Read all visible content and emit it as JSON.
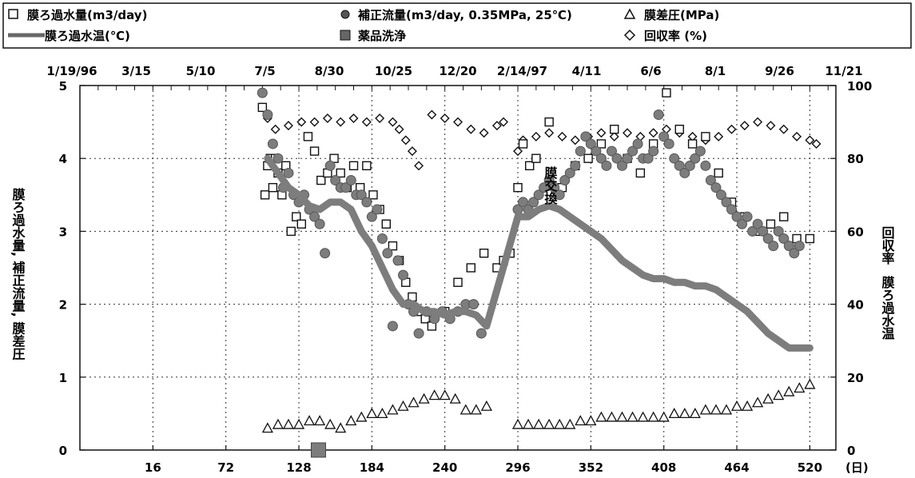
{
  "chart_data": {
    "type": "scatter",
    "title": "",
    "legend": {
      "placement": "top",
      "entries": [
        {
          "key": "permeate_flow",
          "label": "膜ろ過水量(m3/day)",
          "marker": "square"
        },
        {
          "key": "corrected_flow",
          "label": "補正流量(m3/day, 0.35MPa, 25℃)",
          "marker": "circle"
        },
        {
          "key": "tmp",
          "label": "膜差圧(MPa)",
          "marker": "triangle"
        },
        {
          "key": "water_temp",
          "label": "膜ろ過水温(℃)",
          "marker": "line"
        },
        {
          "key": "chem_clean",
          "label": "薬品洗浄",
          "marker": "filled-square"
        },
        {
          "key": "recovery",
          "label": "回収率 (%)",
          "marker": "diamond"
        }
      ]
    },
    "x_axis": {
      "label": "(日)",
      "range": [
        -40,
        540
      ],
      "ticks": [
        16,
        72,
        128,
        184,
        240,
        296,
        352,
        408,
        464,
        520
      ],
      "tick_labels": [
        "16",
        "72",
        "128",
        "184",
        "240",
        "296",
        "352",
        "408",
        "464",
        "520"
      ]
    },
    "x_axis_top": {
      "ticks": [
        -40,
        16,
        72,
        128,
        184,
        240,
        296,
        352,
        408,
        464,
        520
      ],
      "tick_labels": [
        "1/19/96",
        "3/15",
        "5/10",
        "7/5",
        "8/30",
        "10/25",
        "12/20",
        "2/14/97",
        "4/11",
        "6/6",
        "8/1",
        "9/26",
        "11/21"
      ],
      "tick_days": [
        -40,
        16,
        72,
        128,
        184,
        240,
        296,
        352,
        408,
        464,
        520,
        576,
        632
      ]
    },
    "y_left": {
      "label": "膜ろ過水量, 補正流量, 膜差圧",
      "range": [
        0,
        5
      ],
      "ticks": [
        0,
        1,
        2,
        3,
        4,
        5
      ],
      "tick_labels": [
        "0",
        "1",
        "2",
        "3",
        "4",
        "5"
      ]
    },
    "y_right": {
      "labels": [
        "回収率",
        "膜ろ過水温"
      ],
      "range": [
        0,
        100
      ],
      "ticks": [
        0,
        20,
        40,
        60,
        80,
        100
      ],
      "tick_labels": [
        "0",
        "20",
        "40",
        "60",
        "80",
        "100"
      ]
    },
    "grid": true,
    "annotation": "膜交換",
    "series": [
      {
        "name": "回収率 (%)",
        "axis": "right",
        "style": "diamond",
        "x": [
          100,
          104,
          110,
          120,
          130,
          140,
          150,
          160,
          170,
          180,
          190,
          200,
          205,
          210,
          215,
          220,
          230,
          240,
          250,
          260,
          270,
          280,
          285,
          296,
          300,
          310,
          320,
          330,
          340,
          350,
          360,
          370,
          380,
          390,
          400,
          410,
          420,
          430,
          440,
          450,
          460,
          470,
          480,
          490,
          500,
          510,
          520,
          525
        ],
        "y": [
          94,
          91,
          88,
          89,
          90,
          90,
          91,
          90,
          91,
          90,
          91,
          90,
          88,
          85,
          82,
          78,
          92,
          91,
          90,
          88,
          87,
          89,
          90,
          82,
          85,
          86,
          87,
          86,
          85,
          86,
          87,
          86,
          87,
          86,
          87,
          88,
          87,
          86,
          85,
          86,
          88,
          89,
          90,
          89,
          88,
          86,
          85,
          84
        ]
      },
      {
        "name": "膜ろ過水量(m3/day)",
        "axis": "left",
        "style": "square",
        "x": [
          100,
          102,
          104,
          106,
          108,
          110,
          112,
          115,
          118,
          122,
          126,
          130,
          135,
          140,
          145,
          150,
          155,
          160,
          165,
          170,
          175,
          180,
          185,
          190,
          195,
          200,
          205,
          210,
          215,
          220,
          225,
          230,
          240,
          250,
          260,
          270,
          280,
          285,
          290,
          296,
          300,
          305,
          310,
          320,
          330,
          340,
          350,
          360,
          370,
          380,
          390,
          400,
          410,
          420,
          430,
          440,
          450,
          460,
          470,
          480,
          490,
          500,
          510,
          520
        ],
        "y": [
          4.7,
          3.5,
          3.9,
          4.0,
          3.6,
          4.0,
          3.8,
          3.5,
          3.9,
          3.0,
          3.2,
          3.1,
          4.3,
          4.1,
          3.7,
          3.8,
          4.0,
          3.8,
          3.6,
          3.9,
          3.6,
          3.9,
          3.5,
          3.3,
          3.1,
          2.8,
          2.6,
          2.3,
          2.1,
          1.9,
          1.8,
          1.7,
          1.9,
          2.3,
          2.5,
          2.7,
          2.5,
          2.6,
          2.7,
          3.6,
          4.2,
          3.9,
          4.0,
          4.5,
          3.6,
          3.9,
          4.0,
          4.2,
          4.4,
          4.0,
          3.8,
          4.2,
          4.9,
          4.4,
          4.2,
          4.3,
          3.8,
          3.4,
          3.2,
          3.0,
          3.1,
          3.2,
          2.9,
          2.9
        ]
      },
      {
        "name": "補正流量(m3/day, 0.35MPa, 25℃)",
        "axis": "left",
        "style": "circle",
        "x": [
          100,
          104,
          108,
          112,
          116,
          120,
          124,
          128,
          132,
          136,
          140,
          144,
          148,
          152,
          156,
          160,
          164,
          168,
          172,
          176,
          180,
          184,
          188,
          192,
          196,
          200,
          204,
          208,
          212,
          216,
          220,
          226,
          232,
          238,
          244,
          250,
          256,
          262,
          268,
          296,
          300,
          304,
          308,
          312,
          316,
          320,
          324,
          328,
          332,
          336,
          340,
          344,
          348,
          352,
          356,
          360,
          364,
          368,
          372,
          376,
          380,
          384,
          388,
          392,
          396,
          400,
          404,
          408,
          412,
          416,
          420,
          424,
          428,
          432,
          436,
          440,
          444,
          448,
          452,
          456,
          460,
          464,
          468,
          472,
          476,
          480,
          484,
          488,
          492,
          496,
          500,
          504,
          508,
          512
        ],
        "y": [
          4.9,
          4.6,
          4.2,
          4.0,
          3.6,
          3.8,
          3.5,
          3.4,
          3.5,
          3.3,
          3.2,
          3.1,
          2.7,
          3.9,
          3.7,
          3.6,
          3.6,
          3.7,
          3.5,
          3.5,
          3.4,
          3.2,
          3.3,
          2.9,
          2.7,
          1.7,
          2.6,
          2.4,
          2.0,
          1.9,
          1.6,
          1.9,
          1.8,
          1.9,
          1.8,
          1.9,
          2.0,
          2.0,
          1.6,
          3.3,
          3.4,
          3.3,
          3.4,
          3.5,
          3.6,
          3.7,
          3.6,
          3.5,
          3.7,
          3.8,
          3.9,
          4.1,
          4.3,
          4.2,
          4.1,
          4.0,
          3.9,
          4.1,
          4.0,
          3.9,
          4.0,
          4.1,
          4.2,
          4.0,
          4.0,
          4.1,
          4.6,
          4.3,
          4.2,
          4.0,
          3.9,
          3.8,
          3.9,
          4.0,
          4.1,
          3.9,
          3.7,
          3.6,
          3.5,
          3.4,
          3.3,
          3.2,
          3.1,
          3.2,
          3.0,
          3.1,
          3.0,
          2.9,
          2.8,
          3.0,
          2.9,
          2.8,
          2.7,
          2.8
        ]
      },
      {
        "name": "膜ろ過水温(℃)",
        "axis": "right",
        "style": "line",
        "x": [
          104,
          112,
          120,
          128,
          136,
          144,
          152,
          160,
          168,
          176,
          184,
          192,
          200,
          208,
          216,
          224,
          232,
          240,
          248,
          256,
          264,
          272,
          296,
          304,
          312,
          320,
          328,
          336,
          344,
          352,
          360,
          368,
          376,
          384,
          392,
          400,
          408,
          416,
          424,
          432,
          440,
          448,
          456,
          464,
          472,
          480,
          488,
          496,
          504,
          512,
          520
        ],
        "y": [
          80,
          76,
          72,
          70,
          67,
          66,
          68,
          68,
          66,
          60,
          56,
          50,
          44,
          40,
          40,
          38,
          38,
          37,
          38,
          38,
          37,
          34,
          64,
          64,
          66,
          67,
          66,
          64,
          62,
          60,
          58,
          55,
          52,
          50,
          48,
          47,
          47,
          46,
          46,
          45,
          45,
          44,
          42,
          40,
          38,
          35,
          32,
          30,
          28,
          28,
          28
        ]
      },
      {
        "name": "膜差圧(MPa)",
        "axis": "left",
        "style": "triangle",
        "x": [
          104,
          112,
          120,
          128,
          136,
          144,
          152,
          160,
          168,
          176,
          184,
          192,
          200,
          208,
          216,
          224,
          232,
          240,
          248,
          256,
          264,
          272,
          296,
          304,
          312,
          320,
          328,
          336,
          344,
          352,
          360,
          368,
          376,
          384,
          392,
          400,
          408,
          416,
          424,
          432,
          440,
          448,
          456,
          464,
          472,
          480,
          488,
          496,
          504,
          512,
          520
        ],
        "y": [
          0.3,
          0.35,
          0.35,
          0.35,
          0.4,
          0.4,
          0.35,
          0.3,
          0.4,
          0.45,
          0.5,
          0.5,
          0.55,
          0.6,
          0.65,
          0.7,
          0.75,
          0.75,
          0.7,
          0.55,
          0.55,
          0.6,
          0.35,
          0.35,
          0.35,
          0.35,
          0.35,
          0.35,
          0.4,
          0.4,
          0.45,
          0.45,
          0.45,
          0.45,
          0.45,
          0.45,
          0.45,
          0.5,
          0.5,
          0.5,
          0.55,
          0.55,
          0.55,
          0.6,
          0.6,
          0.65,
          0.7,
          0.75,
          0.8,
          0.85,
          0.9
        ]
      },
      {
        "name": "薬品洗浄",
        "axis": "left",
        "style": "filled-square",
        "x": [
          143
        ],
        "y": [
          0
        ]
      }
    ]
  }
}
